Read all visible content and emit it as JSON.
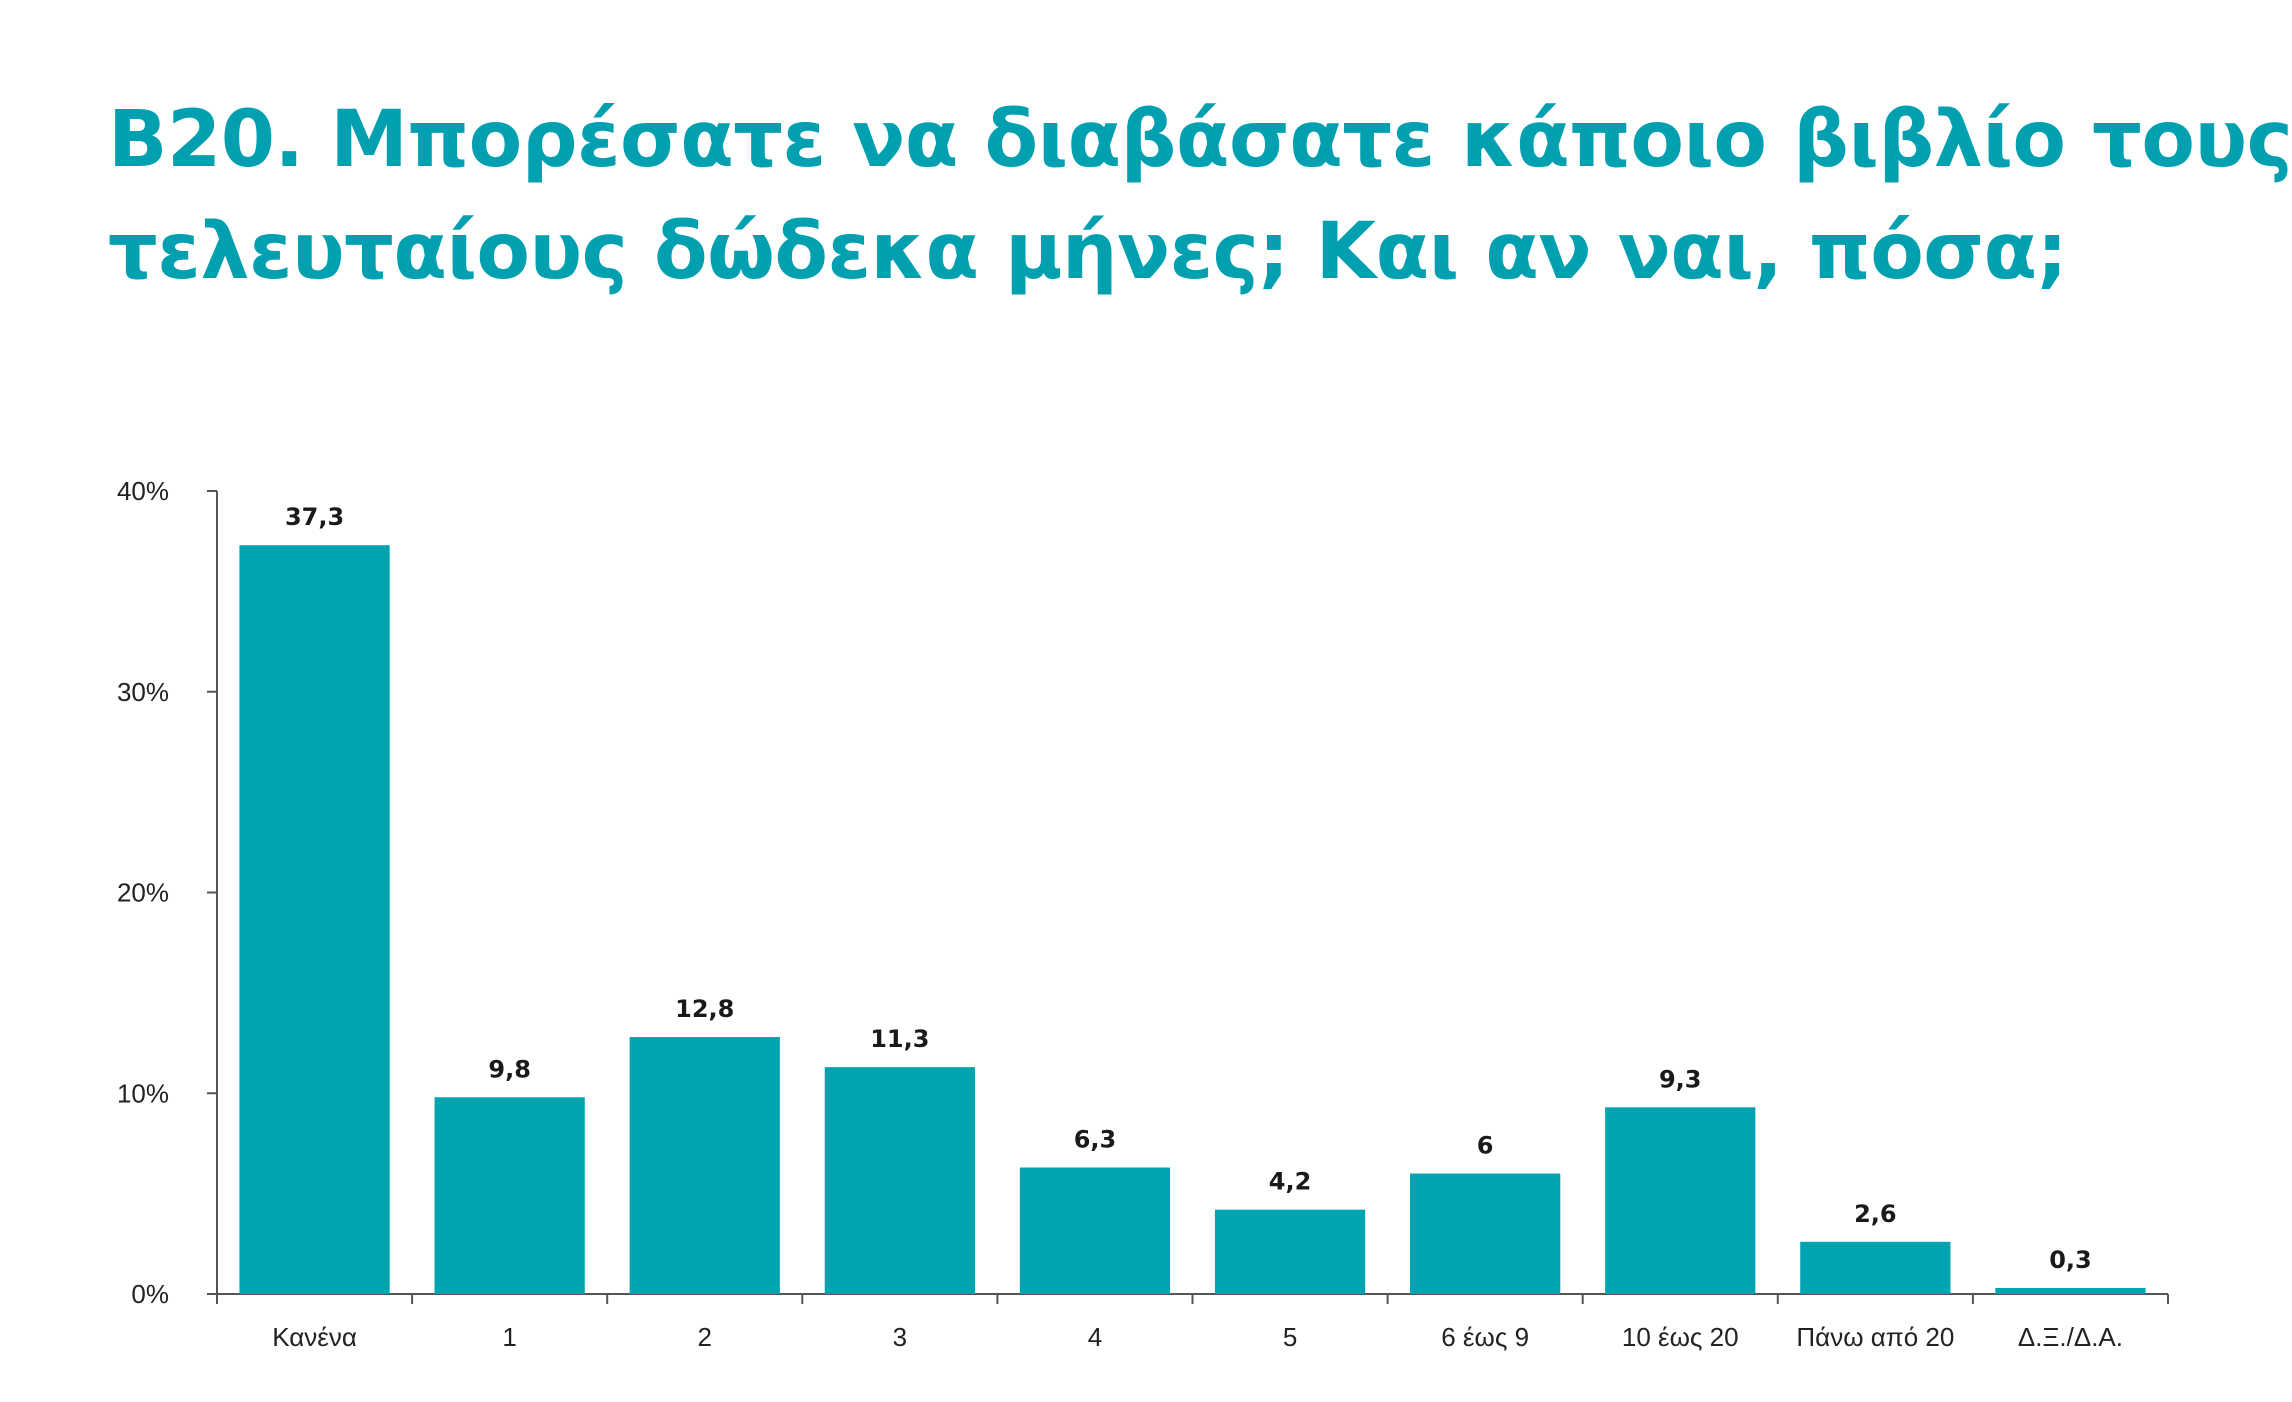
{
  "title_lines": [
    "B20. Μπορέσατε να διαβάσατε κάποιο βιβλίο τους",
    "τελευταίους δώδεκα μήνες; Και αν ναι, πόσα;"
  ],
  "colors": {
    "title": "#00a0b0",
    "bar": "#00a3b0",
    "axis": "#555555",
    "text": "#222222"
  },
  "chart_data": {
    "type": "bar",
    "title": "B20. Μπορέσατε να διαβάσατε κάποιο βιβλίο τους τελευταίους δώδεκα μήνες; Και αν ναι, πόσα;",
    "categories": [
      "Κανένα",
      "1",
      "2",
      "3",
      "4",
      "5",
      "6 έως 9",
      "10 έως 20",
      "Πάνω από 20",
      "Δ.Ξ./Δ.Α."
    ],
    "values": [
      37.3,
      9.8,
      12.8,
      11.3,
      6.3,
      4.2,
      6,
      9.3,
      2.6,
      0.3
    ],
    "value_labels": [
      "37,3",
      "9,8",
      "12,8",
      "11,3",
      "6,3",
      "4,2",
      "6",
      "9,3",
      "2,6",
      "0,3"
    ],
    "ylim": [
      0,
      40
    ],
    "yticks": [
      0,
      10,
      20,
      30,
      40
    ],
    "ytick_labels": [
      "0%",
      "10%",
      "20%",
      "30%",
      "40%"
    ],
    "xlabel": "",
    "ylabel": "",
    "grid": false,
    "legend": "none"
  }
}
